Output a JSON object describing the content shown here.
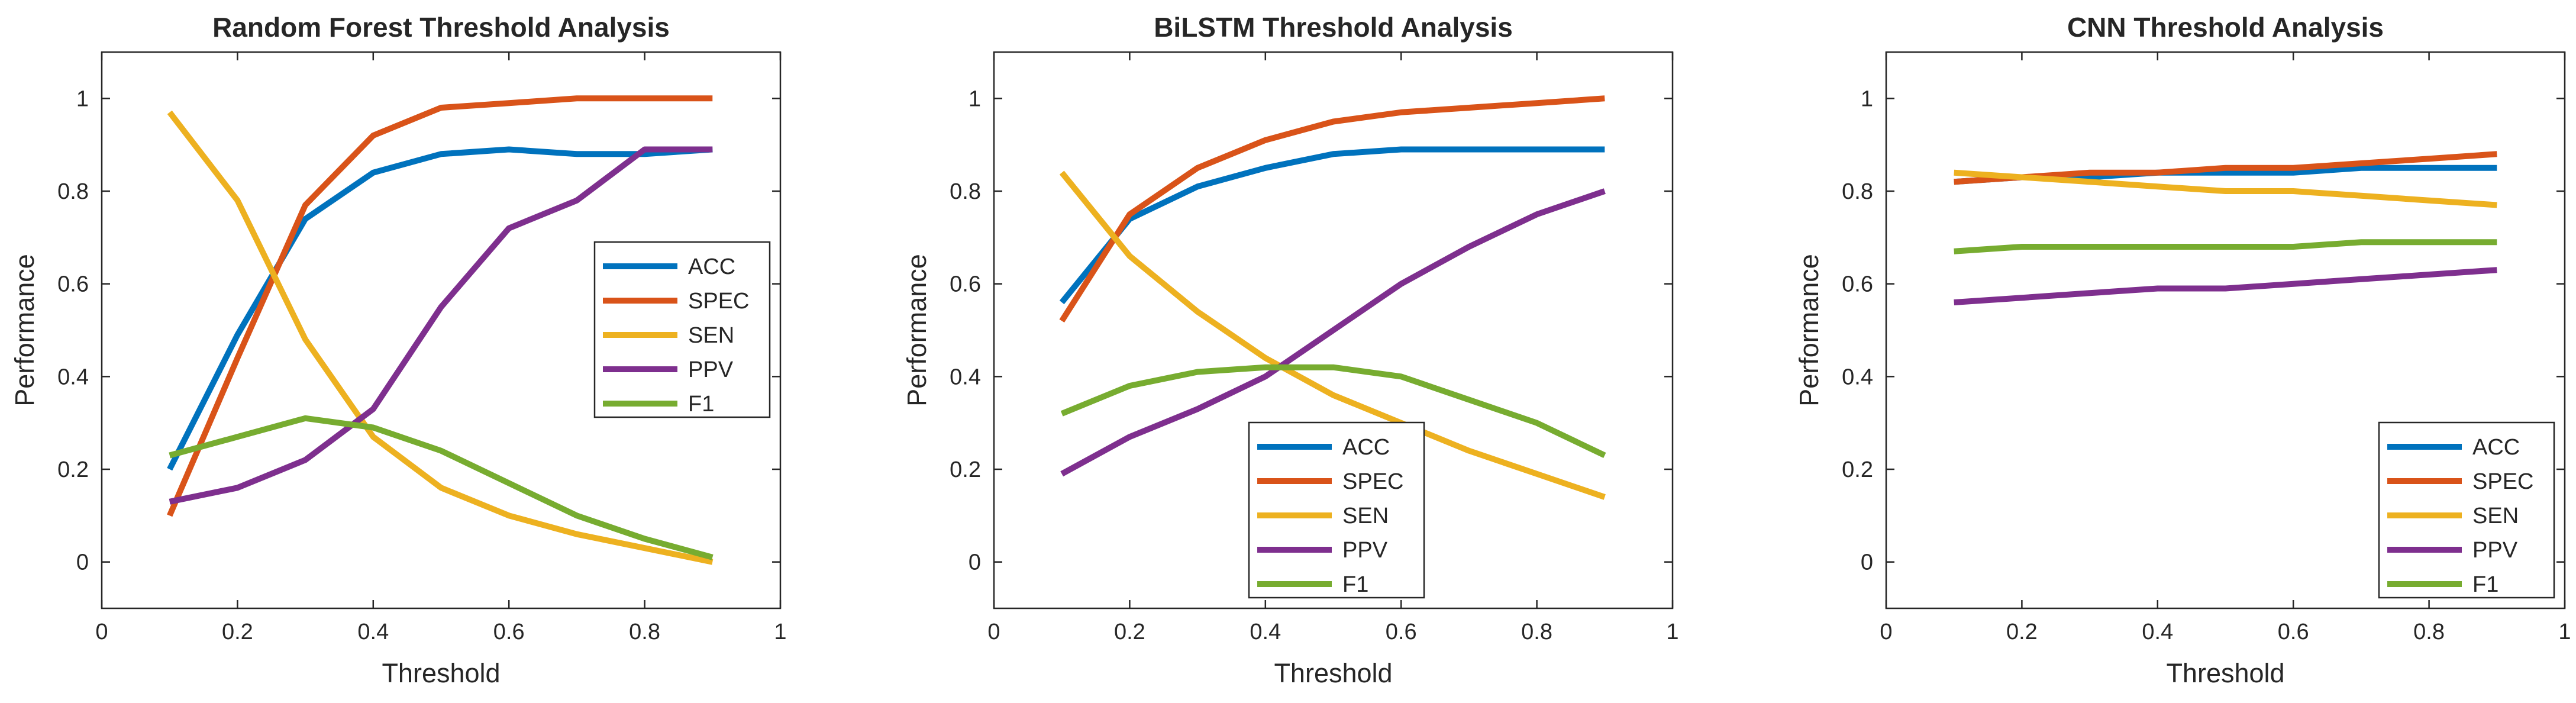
{
  "chart_data": [
    {
      "type": "line",
      "title": "Random Forest Threshold Analysis",
      "xlabel": "Threshold",
      "ylabel": "Performance",
      "xlim": [
        0,
        1
      ],
      "ylim": [
        -0.1,
        1.1
      ],
      "xticks": [
        0,
        0.2,
        0.4,
        0.6,
        0.8,
        1
      ],
      "xtick_labels": [
        "0",
        "0.2",
        "0.4",
        "0.6",
        "0.8",
        "1"
      ],
      "yticks": [
        0,
        0.2,
        0.4,
        0.6,
        0.8,
        1
      ],
      "ytick_labels": [
        "0",
        "0.2",
        "0.4",
        "0.6",
        "0.8",
        "1"
      ],
      "legend_position": "right-middle",
      "x": [
        0.1,
        0.2,
        0.3,
        0.4,
        0.5,
        0.6,
        0.7,
        0.8,
        0.9
      ],
      "series": [
        {
          "name": "ACC",
          "color": "#0072BD",
          "values": [
            0.2,
            0.49,
            0.74,
            0.84,
            0.88,
            0.89,
            0.88,
            0.88,
            0.89
          ]
        },
        {
          "name": "SPEC",
          "color": "#D95319",
          "values": [
            0.1,
            0.44,
            0.77,
            0.92,
            0.98,
            0.99,
            1.0,
            1.0,
            1.0
          ]
        },
        {
          "name": "SEN",
          "color": "#EDB120",
          "values": [
            0.97,
            0.78,
            0.48,
            0.27,
            0.16,
            0.1,
            0.06,
            0.03,
            0.0
          ]
        },
        {
          "name": "PPV",
          "color": "#7E2F8E",
          "values": [
            0.13,
            0.16,
            0.22,
            0.33,
            0.55,
            0.72,
            0.78,
            0.89,
            0.89
          ]
        },
        {
          "name": "F1",
          "color": "#77AC30",
          "values": [
            0.23,
            0.27,
            0.31,
            0.29,
            0.24,
            0.17,
            0.1,
            0.05,
            0.01
          ]
        }
      ]
    },
    {
      "type": "line",
      "title": "BiLSTM Threshold Analysis",
      "xlabel": "Threshold",
      "ylabel": "Performance",
      "xlim": [
        0,
        1
      ],
      "ylim": [
        -0.1,
        1.1
      ],
      "xticks": [
        0,
        0.2,
        0.4,
        0.6,
        0.8,
        1
      ],
      "xtick_labels": [
        "0",
        "0.2",
        "0.4",
        "0.6",
        "0.8",
        "1"
      ],
      "yticks": [
        0,
        0.2,
        0.4,
        0.6,
        0.8,
        1
      ],
      "ytick_labels": [
        "0",
        "0.2",
        "0.4",
        "0.6",
        "0.8",
        "1"
      ],
      "legend_position": "bottom-middle",
      "x": [
        0.1,
        0.2,
        0.3,
        0.4,
        0.5,
        0.6,
        0.7,
        0.8,
        0.9
      ],
      "series": [
        {
          "name": "ACC",
          "color": "#0072BD",
          "values": [
            0.56,
            0.74,
            0.81,
            0.85,
            0.88,
            0.89,
            0.89,
            0.89,
            0.89
          ]
        },
        {
          "name": "SPEC",
          "color": "#D95319",
          "values": [
            0.52,
            0.75,
            0.85,
            0.91,
            0.95,
            0.97,
            0.98,
            0.99,
            1.0
          ]
        },
        {
          "name": "SEN",
          "color": "#EDB120",
          "values": [
            0.84,
            0.66,
            0.54,
            0.44,
            0.36,
            0.3,
            0.24,
            0.19,
            0.14
          ]
        },
        {
          "name": "PPV",
          "color": "#7E2F8E",
          "values": [
            0.19,
            0.27,
            0.33,
            0.4,
            0.5,
            0.6,
            0.68,
            0.75,
            0.8
          ]
        },
        {
          "name": "F1",
          "color": "#77AC30",
          "values": [
            0.32,
            0.38,
            0.41,
            0.42,
            0.42,
            0.4,
            0.35,
            0.3,
            0.23
          ]
        }
      ]
    },
    {
      "type": "line",
      "title": "CNN Threshold Analysis",
      "xlabel": "Threshold",
      "ylabel": "Performance",
      "xlim": [
        0,
        1
      ],
      "ylim": [
        -0.1,
        1.1
      ],
      "xticks": [
        0,
        0.2,
        0.4,
        0.6,
        0.8,
        1
      ],
      "xtick_labels": [
        "0",
        "0.2",
        "0.4",
        "0.6",
        "0.8",
        "1"
      ],
      "yticks": [
        0,
        0.2,
        0.4,
        0.6,
        0.8,
        1
      ],
      "ytick_labels": [
        "0",
        "0.2",
        "0.4",
        "0.6",
        "0.8",
        "1"
      ],
      "legend_position": "bottom-right",
      "x": [
        0.1,
        0.2,
        0.3,
        0.4,
        0.5,
        0.6,
        0.7,
        0.8,
        0.9
      ],
      "series": [
        {
          "name": "ACC",
          "color": "#0072BD",
          "values": [
            0.82,
            0.83,
            0.83,
            0.84,
            0.84,
            0.84,
            0.85,
            0.85,
            0.85
          ]
        },
        {
          "name": "SPEC",
          "color": "#D95319",
          "values": [
            0.82,
            0.83,
            0.84,
            0.84,
            0.85,
            0.85,
            0.86,
            0.87,
            0.88
          ]
        },
        {
          "name": "SEN",
          "color": "#EDB120",
          "values": [
            0.84,
            0.83,
            0.82,
            0.81,
            0.8,
            0.8,
            0.79,
            0.78,
            0.77
          ]
        },
        {
          "name": "PPV",
          "color": "#7E2F8E",
          "values": [
            0.56,
            0.57,
            0.58,
            0.59,
            0.59,
            0.6,
            0.61,
            0.62,
            0.63
          ]
        },
        {
          "name": "F1",
          "color": "#77AC30",
          "values": [
            0.67,
            0.68,
            0.68,
            0.68,
            0.68,
            0.68,
            0.69,
            0.69,
            0.69
          ]
        }
      ]
    }
  ]
}
